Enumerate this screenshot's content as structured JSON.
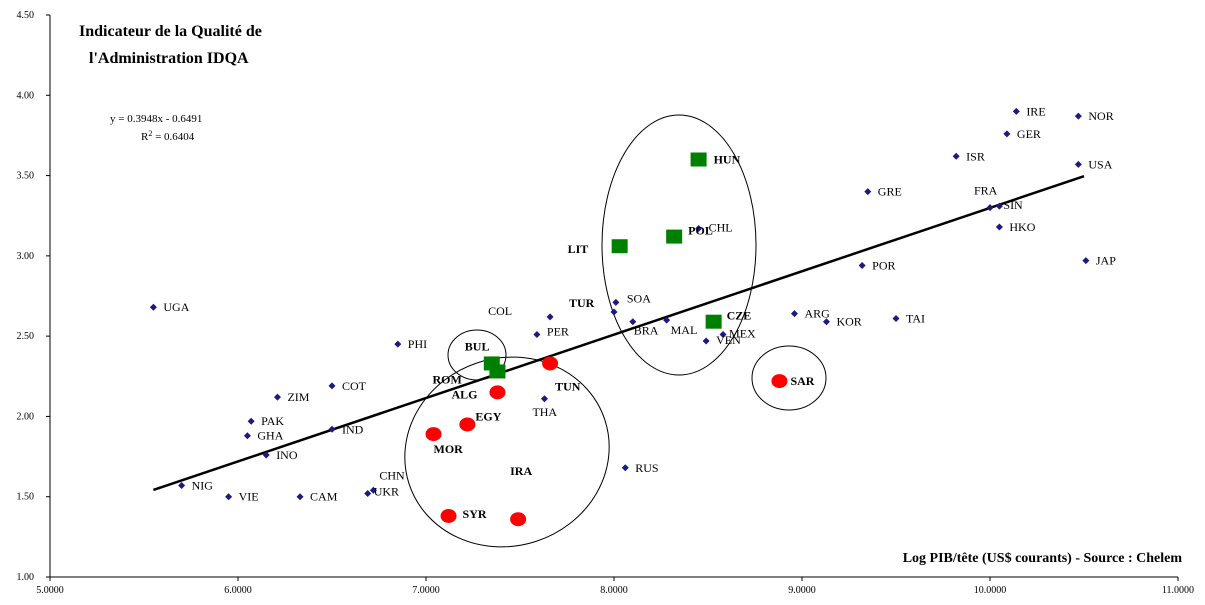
{
  "chart_data": {
    "type": "scatter",
    "title_lines": [
      "Indicateur de la Qualité de",
      "l'Administration IDQA"
    ],
    "xlabel": "Log PIB/tête (US$ courants) - Source : Chelem",
    "ylabel": "",
    "xlim": [
      5.0,
      11.0
    ],
    "ylim": [
      1.0,
      4.5
    ],
    "x_ticks": [
      "5.0000",
      "6.0000",
      "7.0000",
      "8.0000",
      "9.0000",
      "10.0000",
      "11.0000"
    ],
    "y_ticks": [
      "1.00",
      "1.50",
      "2.00",
      "2.50",
      "3.00",
      "3.50",
      "4.00",
      "4.50"
    ],
    "grid": false,
    "equation": "y = 0.3948x - 0.6491",
    "r2": {
      "base": "R",
      "exp": "2",
      "value": " = 0.6404"
    },
    "trendline": {
      "slope": 0.3948,
      "intercept": -0.6491,
      "x_range": [
        5.55,
        10.5
      ]
    },
    "colors": {
      "dot": "#1a1a80",
      "circle": "#ff0000",
      "square": "#008000",
      "line": "#000000"
    },
    "points": [
      {
        "label": "UGA",
        "x": 5.55,
        "y": 2.68,
        "style": "dot",
        "bold": false
      },
      {
        "label": "NIG",
        "x": 5.7,
        "y": 1.57,
        "style": "dot",
        "bold": false
      },
      {
        "label": "VIE",
        "x": 5.95,
        "y": 1.5,
        "style": "dot",
        "bold": false
      },
      {
        "label": "PAK",
        "x": 6.07,
        "y": 1.97,
        "style": "dot",
        "bold": false
      },
      {
        "label": "GHA",
        "x": 6.05,
        "y": 1.88,
        "style": "dot",
        "bold": false
      },
      {
        "label": "INO",
        "x": 6.15,
        "y": 1.76,
        "style": "dot",
        "bold": false
      },
      {
        "label": "ZIM",
        "x": 6.21,
        "y": 2.12,
        "style": "dot",
        "bold": false
      },
      {
        "label": "CAM",
        "x": 6.33,
        "y": 1.5,
        "style": "dot",
        "bold": false
      },
      {
        "label": "COT",
        "x": 6.5,
        "y": 2.19,
        "style": "dot",
        "bold": false
      },
      {
        "label": "IND",
        "x": 6.5,
        "y": 1.92,
        "style": "dot",
        "bold": false
      },
      {
        "label": "CHN",
        "x": 6.72,
        "y": 1.54,
        "style": "dot",
        "bold": false
      },
      {
        "label": "UKR",
        "x": 6.69,
        "y": 1.52,
        "style": "dot",
        "bold": false
      },
      {
        "label": "PHI",
        "x": 6.85,
        "y": 2.45,
        "style": "dot",
        "bold": false
      },
      {
        "label": "COL",
        "x": 7.66,
        "y": 2.62,
        "style": "dot",
        "bold": false
      },
      {
        "label": "PER",
        "x": 7.59,
        "y": 2.51,
        "style": "dot",
        "bold": false
      },
      {
        "label": "THA",
        "x": 7.63,
        "y": 2.11,
        "style": "dot",
        "bold": false
      },
      {
        "label": "TUR",
        "x": 8.0,
        "y": 2.65,
        "style": "dot",
        "bold": true
      },
      {
        "label": "SOA",
        "x": 8.01,
        "y": 2.71,
        "style": "dot",
        "bold": false
      },
      {
        "label": "BRA",
        "x": 8.1,
        "y": 2.59,
        "style": "dot",
        "bold": false
      },
      {
        "label": "MAL",
        "x": 8.28,
        "y": 2.6,
        "style": "dot",
        "bold": false
      },
      {
        "label": "RUS",
        "x": 8.06,
        "y": 1.68,
        "style": "dot",
        "bold": false
      },
      {
        "label": "CHL",
        "x": 8.45,
        "y": 3.17,
        "style": "dot",
        "bold": false
      },
      {
        "label": "VEN",
        "x": 8.49,
        "y": 2.47,
        "style": "dot",
        "bold": false
      },
      {
        "label": "MEX",
        "x": 8.58,
        "y": 2.51,
        "style": "dot",
        "bold": false
      },
      {
        "label": "ARG",
        "x": 8.96,
        "y": 2.64,
        "style": "dot",
        "bold": false
      },
      {
        "label": "KOR",
        "x": 9.13,
        "y": 2.59,
        "style": "dot",
        "bold": false
      },
      {
        "label": "GRE",
        "x": 9.35,
        "y": 3.4,
        "style": "dot",
        "bold": false
      },
      {
        "label": "POR",
        "x": 9.32,
        "y": 2.94,
        "style": "dot",
        "bold": false
      },
      {
        "label": "TAI",
        "x": 9.5,
        "y": 2.61,
        "style": "dot",
        "bold": false
      },
      {
        "label": "ISR",
        "x": 9.82,
        "y": 3.62,
        "style": "dot",
        "bold": false
      },
      {
        "label": "FRA",
        "x": 10.0,
        "y": 3.3,
        "style": "dot",
        "bold": false
      },
      {
        "label": "SIN",
        "x": 10.05,
        "y": 3.31,
        "style": "dot",
        "bold": false
      },
      {
        "label": "HKO",
        "x": 10.05,
        "y": 3.18,
        "style": "dot",
        "bold": false
      },
      {
        "label": "IRE",
        "x": 10.14,
        "y": 3.9,
        "style": "dot",
        "bold": false
      },
      {
        "label": "GER",
        "x": 10.09,
        "y": 3.76,
        "style": "dot",
        "bold": false
      },
      {
        "label": "NOR",
        "x": 10.47,
        "y": 3.87,
        "style": "dot",
        "bold": false
      },
      {
        "label": "USA",
        "x": 10.47,
        "y": 3.57,
        "style": "dot",
        "bold": false
      },
      {
        "label": "JAP",
        "x": 10.51,
        "y": 2.97,
        "style": "dot",
        "bold": false
      },
      {
        "label": "HUN",
        "x": 8.45,
        "y": 3.6,
        "style": "square",
        "bold": true
      },
      {
        "label": "POL",
        "x": 8.32,
        "y": 3.12,
        "style": "square",
        "bold": true
      },
      {
        "label": "LIT",
        "x": 8.03,
        "y": 3.06,
        "style": "square",
        "bold": true
      },
      {
        "label": "CZE",
        "x": 8.53,
        "y": 2.59,
        "style": "square",
        "bold": true
      },
      {
        "label": "BUL",
        "x": 7.35,
        "y": 2.33,
        "style": "square",
        "bold": true
      },
      {
        "label": "ROM",
        "x": 7.38,
        "y": 2.28,
        "style": "square",
        "bold": true
      },
      {
        "label": "TUN",
        "x": 7.66,
        "y": 2.33,
        "style": "circle",
        "bold": true
      },
      {
        "label": "ALG",
        "x": 7.38,
        "y": 2.15,
        "style": "circle",
        "bold": true
      },
      {
        "label": "EGY",
        "x": 7.22,
        "y": 1.95,
        "style": "circle",
        "bold": true
      },
      {
        "label": "MOR",
        "x": 7.04,
        "y": 1.89,
        "style": "circle",
        "bold": true
      },
      {
        "label": "IRA",
        "x": 7.49,
        "y": 1.36,
        "style": "circle",
        "bold": true
      },
      {
        "label": "SYR",
        "x": 7.12,
        "y": 1.38,
        "style": "circle",
        "bold": true
      },
      {
        "label": "SAR",
        "x": 8.88,
        "y": 2.22,
        "style": "circle",
        "bold": true
      }
    ]
  }
}
